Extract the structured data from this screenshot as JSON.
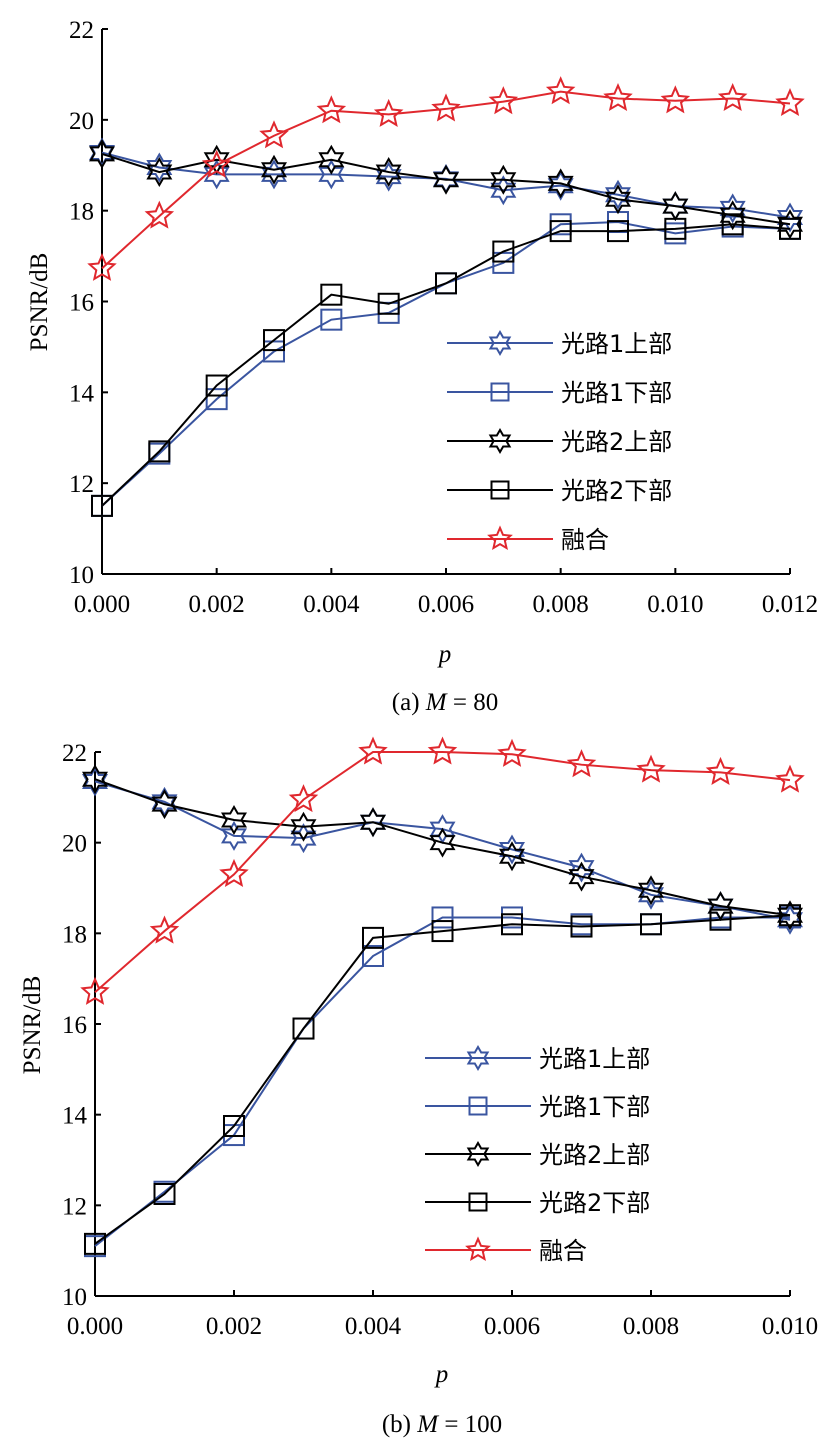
{
  "colors": {
    "blue": "#3a55a0",
    "black": "#000000",
    "red": "#e0282e"
  },
  "chart_data": [
    {
      "type": "line",
      "title": "",
      "caption_prefix": "(a) ",
      "caption_var": "M",
      "caption_suffix": " = 80",
      "xlabel": "p",
      "ylabel": "PSNR/dB",
      "xlim": [
        0,
        0.012
      ],
      "ylim": [
        10,
        22
      ],
      "grid": false,
      "legend_position": "center-right",
      "x": [
        0.0,
        0.001,
        0.002,
        0.003,
        0.004,
        0.005,
        0.006,
        0.007,
        0.008,
        0.009,
        0.01,
        0.011,
        0.012
      ],
      "xticks": [
        0.0,
        0.002,
        0.004,
        0.006,
        0.008,
        0.01,
        0.012
      ],
      "xtick_labels": [
        "0.000",
        "0.002",
        "0.004",
        "0.006",
        "0.008",
        "0.010",
        "0.012"
      ],
      "yticks": [
        10,
        12,
        14,
        16,
        18,
        20,
        22
      ],
      "ytick_labels": [
        "10",
        "12",
        "14",
        "16",
        "18",
        "20",
        "22"
      ],
      "series": [
        {
          "name": "光路1上部",
          "color_key": "blue",
          "marker": "hexagram",
          "values": [
            19.28,
            18.95,
            18.8,
            18.8,
            18.8,
            18.75,
            18.7,
            18.45,
            18.55,
            18.35,
            18.1,
            18.05,
            17.85
          ]
        },
        {
          "name": "光路1下部",
          "color_key": "blue",
          "marker": "square",
          "values": [
            11.5,
            12.65,
            13.85,
            14.9,
            15.6,
            15.75,
            16.4,
            16.85,
            17.7,
            17.75,
            17.5,
            17.65,
            17.6
          ]
        },
        {
          "name": "光路2上部",
          "color_key": "black",
          "marker": "hexagram",
          "values": [
            19.25,
            18.85,
            19.12,
            18.9,
            19.12,
            18.85,
            18.68,
            18.68,
            18.6,
            18.25,
            18.1,
            17.9,
            17.7
          ]
        },
        {
          "name": "光路2下部",
          "color_key": "black",
          "marker": "square",
          "values": [
            11.5,
            12.7,
            14.15,
            15.15,
            16.15,
            15.95,
            16.4,
            17.1,
            17.55,
            17.55,
            17.6,
            17.7,
            17.6
          ]
        },
        {
          "name": "融合",
          "color_key": "red",
          "marker": "star",
          "values": [
            16.73,
            17.88,
            19.0,
            19.65,
            20.2,
            20.12,
            20.24,
            20.4,
            20.62,
            20.47,
            20.42,
            20.47,
            20.36
          ]
        }
      ]
    },
    {
      "type": "line",
      "title": "",
      "caption_prefix": "(b) ",
      "caption_var": "M",
      "caption_suffix": " = 100",
      "xlabel": "p",
      "ylabel": "PSNR/dB",
      "xlim": [
        0,
        0.01
      ],
      "ylim": [
        10,
        22
      ],
      "grid": false,
      "legend_position": "center-right",
      "x": [
        0.0,
        0.001,
        0.002,
        0.003,
        0.004,
        0.005,
        0.006,
        0.007,
        0.008,
        0.009,
        0.01
      ],
      "xticks": [
        0.0,
        0.002,
        0.004,
        0.006,
        0.008,
        0.01
      ],
      "xtick_labels": [
        "0.000",
        "0.002",
        "0.004",
        "0.006",
        "0.008",
        "0.010"
      ],
      "yticks": [
        10,
        12,
        14,
        16,
        18,
        20,
        22
      ],
      "ytick_labels": [
        "10",
        "12",
        "14",
        "16",
        "18",
        "20",
        "22"
      ],
      "series": [
        {
          "name": "光路1上部",
          "color_key": "blue",
          "marker": "hexagram",
          "values": [
            21.35,
            20.9,
            20.15,
            20.1,
            20.45,
            20.3,
            19.85,
            19.45,
            18.85,
            18.6,
            18.3
          ]
        },
        {
          "name": "光路1下部",
          "color_key": "blue",
          "marker": "square",
          "values": [
            11.1,
            12.3,
            13.55,
            15.9,
            17.5,
            18.35,
            18.35,
            18.2,
            18.2,
            18.35,
            18.35
          ]
        },
        {
          "name": "光路2上部",
          "color_key": "black",
          "marker": "hexagram",
          "values": [
            21.4,
            20.85,
            20.5,
            20.35,
            20.45,
            20.0,
            19.7,
            19.25,
            18.95,
            18.6,
            18.4
          ]
        },
        {
          "name": "光路2下部",
          "color_key": "black",
          "marker": "square",
          "values": [
            11.15,
            12.25,
            13.75,
            15.9,
            17.9,
            18.05,
            18.2,
            18.15,
            18.2,
            18.3,
            18.4
          ]
        },
        {
          "name": "融合",
          "color_key": "red",
          "marker": "star",
          "values": [
            16.7,
            18.05,
            19.3,
            20.95,
            22.0,
            22.0,
            21.95,
            21.72,
            21.6,
            21.55,
            21.38
          ]
        }
      ]
    }
  ]
}
